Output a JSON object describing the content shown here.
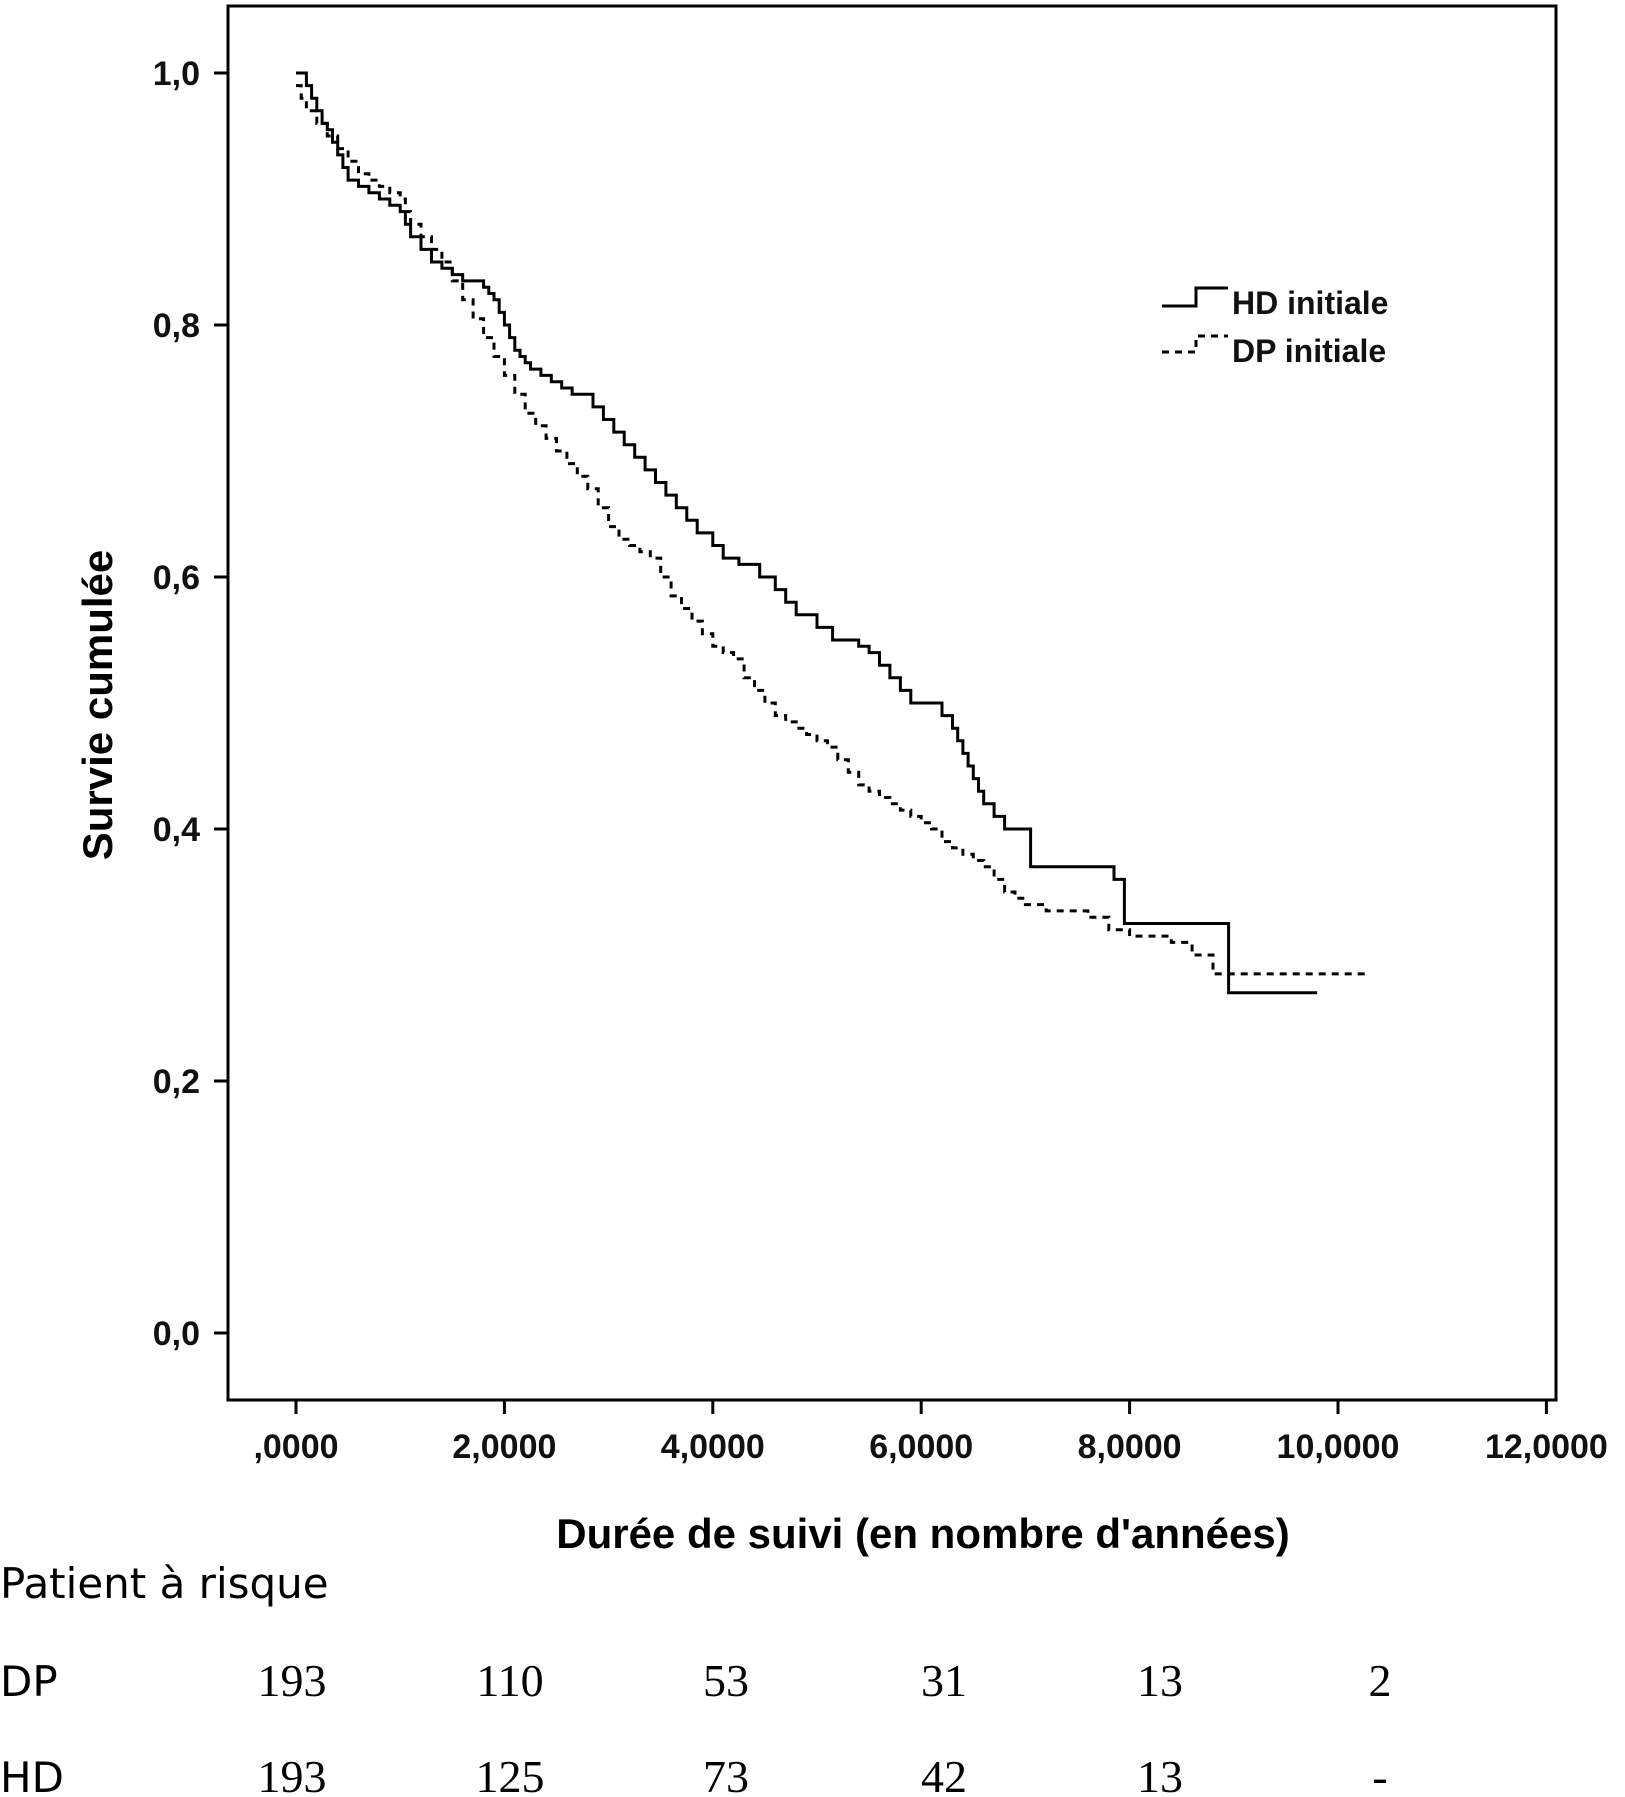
{
  "chart_data": {
    "type": "line",
    "ylabel": "Survie cumulée",
    "xlabel": "Durée de suivi (en nombre d'années)",
    "xlim": [
      -0.67,
      12.0
    ],
    "ylim": [
      -0.05,
      1.06
    ],
    "x_ticks": [
      ",0000",
      "2,0000",
      "4,0000",
      "6,0000",
      "8,0000",
      "10,0000",
      "12,0000"
    ],
    "y_ticks": [
      "0,0",
      "0,2",
      "0,4",
      "0,6",
      "0,8",
      "1,0"
    ],
    "legend": {
      "position": "top-right"
    },
    "series": [
      {
        "name": "HD initiale",
        "style": "solid",
        "color": "#000000",
        "x": [
          0.0,
          0.1,
          0.15,
          0.2,
          0.25,
          0.3,
          0.35,
          0.4,
          0.45,
          0.5,
          0.6,
          0.7,
          0.8,
          0.9,
          1.0,
          1.05,
          1.1,
          1.2,
          1.3,
          1.4,
          1.5,
          1.6,
          1.8,
          1.85,
          1.9,
          1.95,
          2.0,
          2.05,
          2.1,
          2.15,
          2.2,
          2.25,
          2.35,
          2.45,
          2.55,
          2.65,
          2.85,
          2.95,
          3.05,
          3.15,
          3.25,
          3.35,
          3.45,
          3.55,
          3.65,
          3.75,
          3.85,
          4.0,
          4.1,
          4.25,
          4.45,
          4.6,
          4.7,
          4.8,
          5.0,
          5.15,
          5.4,
          5.5,
          5.6,
          5.7,
          5.8,
          5.9,
          6.2,
          6.3,
          6.35,
          6.4,
          6.45,
          6.5,
          6.55,
          6.6,
          6.7,
          6.8,
          7.05,
          7.85,
          7.95,
          8.95,
          9.8
        ],
        "y": [
          1.0,
          0.99,
          0.98,
          0.97,
          0.96,
          0.955,
          0.945,
          0.935,
          0.925,
          0.915,
          0.91,
          0.905,
          0.9,
          0.895,
          0.89,
          0.88,
          0.87,
          0.86,
          0.85,
          0.845,
          0.84,
          0.835,
          0.83,
          0.825,
          0.82,
          0.81,
          0.8,
          0.79,
          0.78,
          0.775,
          0.77,
          0.765,
          0.76,
          0.755,
          0.75,
          0.745,
          0.735,
          0.725,
          0.715,
          0.705,
          0.695,
          0.685,
          0.675,
          0.665,
          0.655,
          0.645,
          0.635,
          0.625,
          0.615,
          0.61,
          0.6,
          0.59,
          0.58,
          0.57,
          0.56,
          0.55,
          0.545,
          0.54,
          0.53,
          0.52,
          0.51,
          0.5,
          0.49,
          0.48,
          0.47,
          0.46,
          0.45,
          0.44,
          0.43,
          0.42,
          0.41,
          0.4,
          0.37,
          0.36,
          0.325,
          0.27,
          0.27
        ]
      },
      {
        "name": "DP initiale",
        "style": "dashed",
        "color": "#000000",
        "x": [
          0.0,
          0.05,
          0.1,
          0.2,
          0.3,
          0.4,
          0.5,
          0.6,
          0.7,
          0.8,
          0.9,
          1.0,
          1.05,
          1.1,
          1.2,
          1.3,
          1.4,
          1.5,
          1.6,
          1.7,
          1.8,
          1.9,
          2.0,
          2.1,
          2.2,
          2.3,
          2.4,
          2.5,
          2.6,
          2.7,
          2.8,
          2.9,
          3.0,
          3.1,
          3.2,
          3.3,
          3.4,
          3.5,
          3.6,
          3.7,
          3.8,
          3.9,
          4.0,
          4.1,
          4.2,
          4.3,
          4.4,
          4.5,
          4.6,
          4.7,
          4.8,
          4.9,
          5.0,
          5.1,
          5.2,
          5.3,
          5.4,
          5.5,
          5.6,
          5.7,
          5.8,
          5.9,
          6.0,
          6.1,
          6.2,
          6.3,
          6.4,
          6.5,
          6.6,
          6.7,
          6.8,
          6.9,
          7.0,
          7.2,
          7.4,
          7.6,
          7.8,
          8.0,
          8.2,
          8.4,
          8.6,
          8.8,
          9.0,
          9.2,
          9.4,
          9.6,
          9.8,
          10.0,
          10.3
        ],
        "y": [
          0.99,
          0.98,
          0.97,
          0.96,
          0.95,
          0.94,
          0.93,
          0.92,
          0.915,
          0.91,
          0.905,
          0.9,
          0.89,
          0.88,
          0.87,
          0.86,
          0.85,
          0.835,
          0.82,
          0.805,
          0.79,
          0.775,
          0.76,
          0.745,
          0.73,
          0.72,
          0.71,
          0.7,
          0.69,
          0.68,
          0.67,
          0.655,
          0.64,
          0.63,
          0.625,
          0.62,
          0.615,
          0.6,
          0.585,
          0.575,
          0.565,
          0.555,
          0.545,
          0.54,
          0.535,
          0.52,
          0.51,
          0.5,
          0.49,
          0.485,
          0.48,
          0.475,
          0.47,
          0.465,
          0.455,
          0.445,
          0.435,
          0.43,
          0.425,
          0.42,
          0.415,
          0.41,
          0.405,
          0.4,
          0.39,
          0.385,
          0.38,
          0.375,
          0.37,
          0.36,
          0.35,
          0.345,
          0.34,
          0.335,
          0.335,
          0.33,
          0.32,
          0.315,
          0.315,
          0.31,
          0.3,
          0.285,
          0.285,
          0.285,
          0.285,
          0.285,
          0.285,
          0.285,
          0.285
        ]
      }
    ]
  },
  "risk_table": {
    "title": "Patient à risque",
    "rows": [
      {
        "label": "DP",
        "values": [
          "193",
          "110",
          "53",
          "31",
          "13",
          "2"
        ]
      },
      {
        "label": "HD",
        "values": [
          "193",
          "125",
          "73",
          "42",
          "13",
          "-"
        ]
      }
    ]
  }
}
